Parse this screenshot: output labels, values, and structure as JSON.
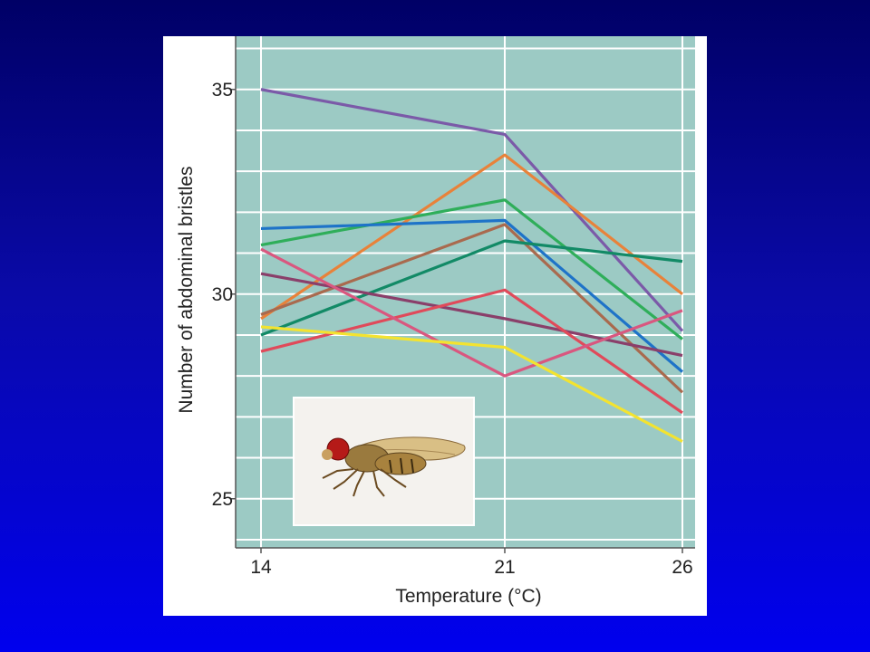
{
  "colors": {
    "plot_background": "#9ccac4",
    "grid": "#ffffff",
    "frame": "#ffffff",
    "slide_top": "#000066",
    "slide_bottom": "#0000ee"
  },
  "inset_image": {
    "subject": "fruit-fly-illustration"
  },
  "chart_data": {
    "type": "line",
    "title": "",
    "xlabel": "Temperature (°C)",
    "ylabel": "Number of abdominal bristles",
    "x": [
      14,
      21,
      26
    ],
    "x_ticks": [
      "14",
      "21",
      "26"
    ],
    "y_ticks": [
      "35",
      "30",
      "25"
    ],
    "y_tick_values": [
      35,
      30,
      25
    ],
    "ylim": [
      23.8,
      36.3
    ],
    "grid": true,
    "legend": "none",
    "series": [
      {
        "color": "#7b5aa8",
        "values": [
          35.0,
          33.9,
          29.1
        ]
      },
      {
        "color": "#e8823a",
        "values": [
          29.4,
          33.4,
          30.0
        ]
      },
      {
        "color": "#2fae5a",
        "values": [
          31.2,
          32.3,
          28.9
        ]
      },
      {
        "color": "#1e73c8",
        "values": [
          31.6,
          31.8,
          28.1
        ]
      },
      {
        "color": "#a96a4e",
        "values": [
          29.5,
          31.7,
          27.6
        ]
      },
      {
        "color": "#128a66",
        "values": [
          29.0,
          31.3,
          30.8
        ]
      },
      {
        "color": "#8a3f6a",
        "values": [
          30.5,
          29.4,
          28.5
        ]
      },
      {
        "color": "#e04a5a",
        "values": [
          28.6,
          30.1,
          27.1
        ]
      },
      {
        "color": "#d9577f",
        "values": [
          31.1,
          28.0,
          29.6
        ]
      },
      {
        "color": "#f3e330",
        "values": [
          29.2,
          28.7,
          26.4
        ]
      }
    ]
  }
}
